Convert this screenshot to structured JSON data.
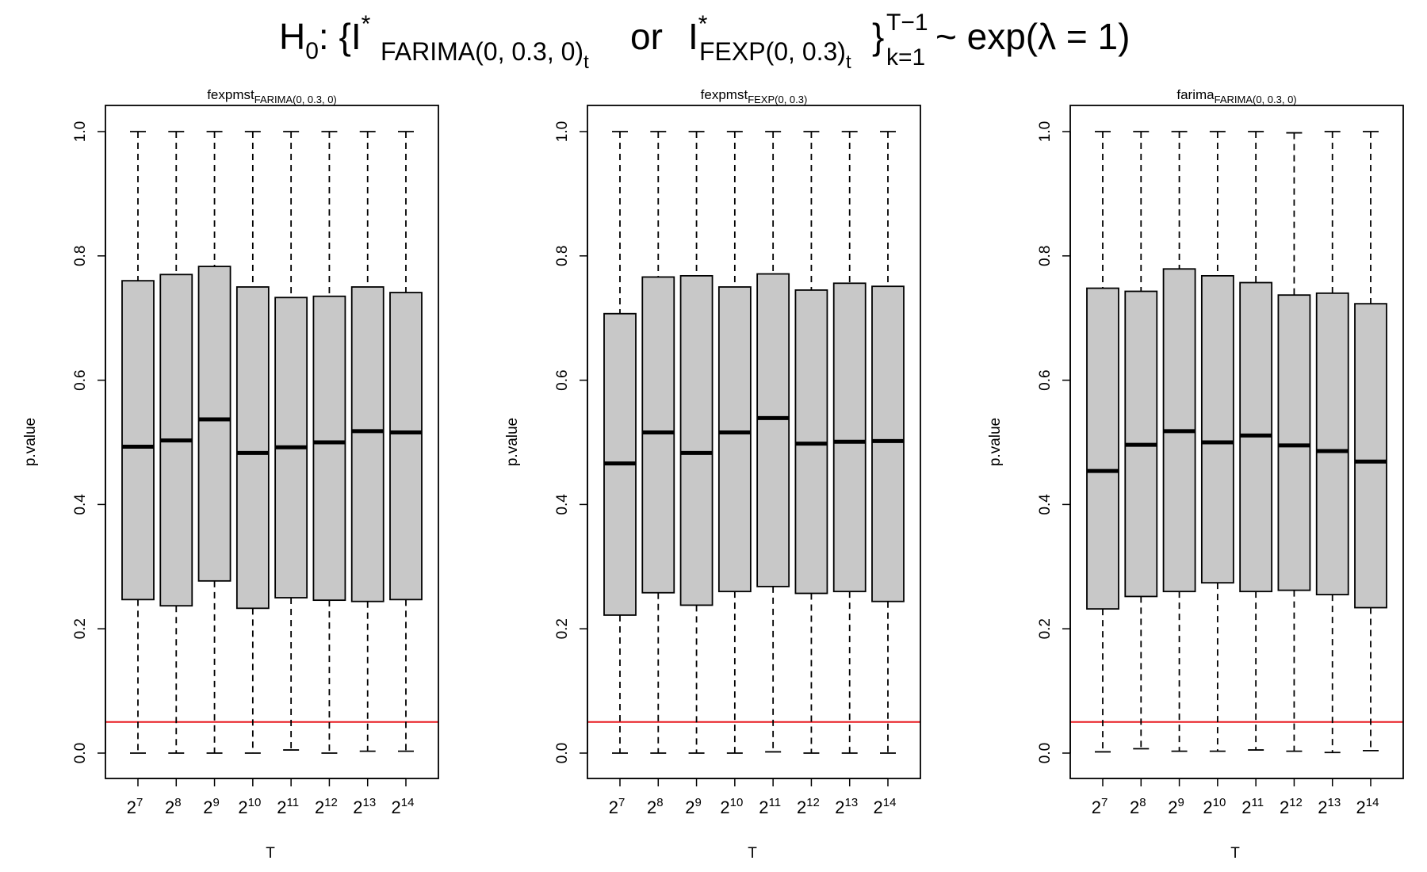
{
  "figure": {
    "supertitle": {
      "h": "H",
      "h_sub": "0",
      "colon_brace": ":  {I",
      "star1": "*",
      "sub1": "FARIMA(0, 0.3, 0)",
      "t1": "t",
      "or": "or",
      "i2": "I",
      "star2": "*",
      "sub2": "FEXP(0, 0.3)",
      "t2": "t",
      "close_brace": "}",
      "sup_range": "T−1",
      "sub_range": "k=1",
      "tilde_exp": "~ exp(λ = 1)"
    },
    "reference_line": {
      "value": 0.05,
      "color": "#e8191f"
    },
    "colors": {
      "box_fill": "#c8c8c8",
      "axis": "#000000"
    }
  },
  "chart_data": [
    {
      "type": "box",
      "title_main": "fexpmst",
      "title_sub": "FARIMA(0, 0.3, 0)",
      "xlabel": "T",
      "ylabel": "p.value",
      "ylim": [
        0,
        1
      ],
      "yticks": [
        "0.0",
        "0.2",
        "0.4",
        "0.6",
        "0.8",
        "1.0"
      ],
      "categories": [
        {
          "base": "2",
          "exp": "7"
        },
        {
          "base": "2",
          "exp": "8"
        },
        {
          "base": "2",
          "exp": "9"
        },
        {
          "base": "2",
          "exp": "10"
        },
        {
          "base": "2",
          "exp": "11"
        },
        {
          "base": "2",
          "exp": "12"
        },
        {
          "base": "2",
          "exp": "13"
        },
        {
          "base": "2",
          "exp": "14"
        }
      ],
      "boxes": [
        {
          "min": 0.0,
          "q1": 0.247,
          "median": 0.493,
          "q3": 0.76,
          "max": 1.0
        },
        {
          "min": 0.0,
          "q1": 0.237,
          "median": 0.503,
          "q3": 0.77,
          "max": 1.0
        },
        {
          "min": 0.0,
          "q1": 0.277,
          "median": 0.537,
          "q3": 0.783,
          "max": 1.0
        },
        {
          "min": 0.0,
          "q1": 0.233,
          "median": 0.483,
          "q3": 0.75,
          "max": 1.0
        },
        {
          "min": 0.005,
          "q1": 0.25,
          "median": 0.492,
          "q3": 0.733,
          "max": 1.0
        },
        {
          "min": 0.0,
          "q1": 0.246,
          "median": 0.5,
          "q3": 0.735,
          "max": 1.0
        },
        {
          "min": 0.003,
          "q1": 0.244,
          "median": 0.518,
          "q3": 0.75,
          "max": 1.0
        },
        {
          "min": 0.003,
          "q1": 0.247,
          "median": 0.516,
          "q3": 0.741,
          "max": 1.0
        }
      ]
    },
    {
      "type": "box",
      "title_main": "fexpmst",
      "title_sub": "FEXP(0, 0.3)",
      "xlabel": "T",
      "ylabel": "p.value",
      "ylim": [
        0,
        1
      ],
      "yticks": [
        "0.0",
        "0.2",
        "0.4",
        "0.6",
        "0.8",
        "1.0"
      ],
      "categories": [
        {
          "base": "2",
          "exp": "7"
        },
        {
          "base": "2",
          "exp": "8"
        },
        {
          "base": "2",
          "exp": "9"
        },
        {
          "base": "2",
          "exp": "10"
        },
        {
          "base": "2",
          "exp": "11"
        },
        {
          "base": "2",
          "exp": "12"
        },
        {
          "base": "2",
          "exp": "13"
        },
        {
          "base": "2",
          "exp": "14"
        }
      ],
      "boxes": [
        {
          "min": 0.0,
          "q1": 0.222,
          "median": 0.466,
          "q3": 0.707,
          "max": 1.0
        },
        {
          "min": 0.0,
          "q1": 0.258,
          "median": 0.516,
          "q3": 0.766,
          "max": 1.0
        },
        {
          "min": 0.0,
          "q1": 0.238,
          "median": 0.483,
          "q3": 0.768,
          "max": 1.0
        },
        {
          "min": 0.0,
          "q1": 0.26,
          "median": 0.516,
          "q3": 0.75,
          "max": 1.0
        },
        {
          "min": 0.002,
          "q1": 0.268,
          "median": 0.539,
          "q3": 0.771,
          "max": 1.0
        },
        {
          "min": 0.0,
          "q1": 0.257,
          "median": 0.498,
          "q3": 0.745,
          "max": 1.0
        },
        {
          "min": 0.0,
          "q1": 0.26,
          "median": 0.501,
          "q3": 0.756,
          "max": 1.0
        },
        {
          "min": 0.0,
          "q1": 0.244,
          "median": 0.502,
          "q3": 0.751,
          "max": 1.0
        }
      ]
    },
    {
      "type": "box",
      "title_main": "farima",
      "title_sub": "FARIMA(0, 0.3, 0)",
      "xlabel": "T",
      "ylabel": "p.value",
      "ylim": [
        0,
        1
      ],
      "yticks": [
        "0.0",
        "0.2",
        "0.4",
        "0.6",
        "0.8",
        "1.0"
      ],
      "categories": [
        {
          "base": "2",
          "exp": "7"
        },
        {
          "base": "2",
          "exp": "8"
        },
        {
          "base": "2",
          "exp": "9"
        },
        {
          "base": "2",
          "exp": "10"
        },
        {
          "base": "2",
          "exp": "11"
        },
        {
          "base": "2",
          "exp": "12"
        },
        {
          "base": "2",
          "exp": "13"
        },
        {
          "base": "2",
          "exp": "14"
        }
      ],
      "boxes": [
        {
          "min": 0.002,
          "q1": 0.232,
          "median": 0.454,
          "q3": 0.748,
          "max": 1.0
        },
        {
          "min": 0.007,
          "q1": 0.252,
          "median": 0.496,
          "q3": 0.743,
          "max": 1.0
        },
        {
          "min": 0.003,
          "q1": 0.26,
          "median": 0.518,
          "q3": 0.779,
          "max": 1.0
        },
        {
          "min": 0.003,
          "q1": 0.274,
          "median": 0.5,
          "q3": 0.768,
          "max": 1.0
        },
        {
          "min": 0.005,
          "q1": 0.26,
          "median": 0.511,
          "q3": 0.757,
          "max": 1.0
        },
        {
          "min": 0.003,
          "q1": 0.262,
          "median": 0.495,
          "q3": 0.737,
          "max": 0.998
        },
        {
          "min": 0.001,
          "q1": 0.255,
          "median": 0.486,
          "q3": 0.74,
          "max": 1.0
        },
        {
          "min": 0.004,
          "q1": 0.234,
          "median": 0.469,
          "q3": 0.723,
          "max": 1.0
        }
      ]
    }
  ]
}
